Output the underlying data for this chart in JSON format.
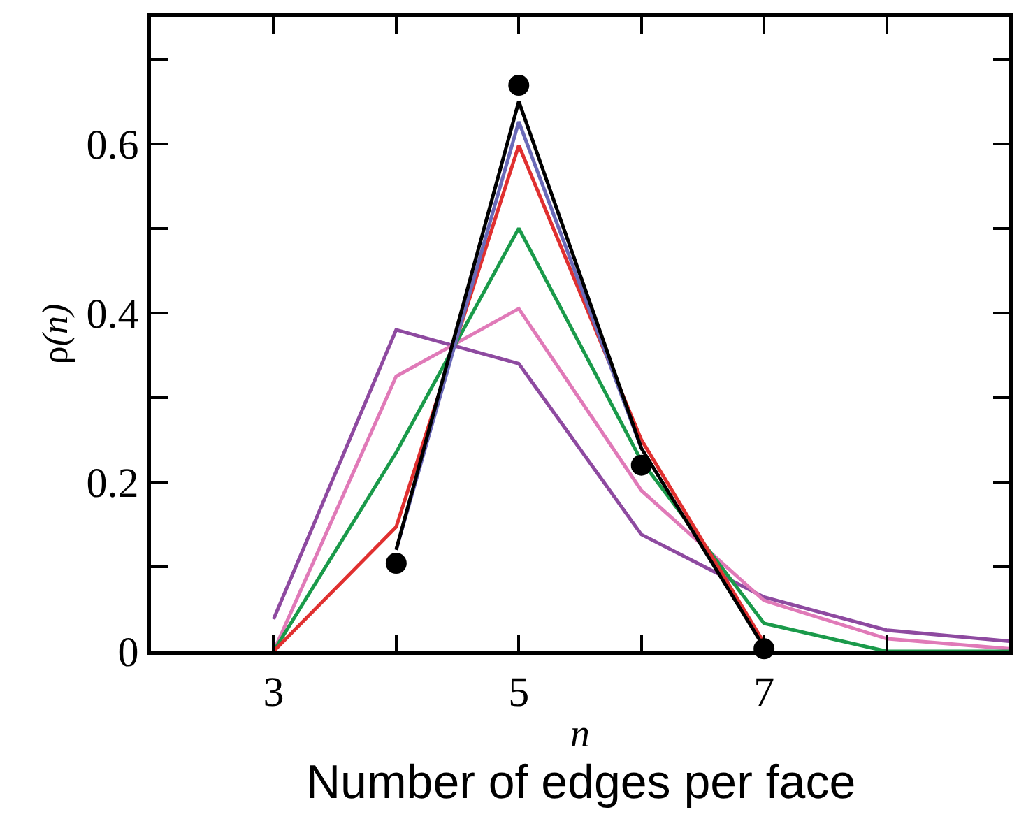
{
  "chart_data": {
    "type": "line",
    "xlabel": "n",
    "ylabel": "ρ(n)",
    "annotations": [
      "Number of edges per face"
    ],
    "xlim": [
      2,
      9
    ],
    "ylim": [
      0,
      0.75
    ],
    "xticks": [
      3,
      {
        "value": 4,
        "label": null
      },
      5,
      {
        "value": 6,
        "label": null
      },
      7,
      {
        "value": 8,
        "label": null
      }
    ],
    "yticks": [
      0,
      {
        "value": 0.1,
        "label": null
      },
      0.2,
      {
        "value": 0.3,
        "label": null
      },
      0.4,
      {
        "value": 0.5,
        "label": null
      },
      0.6,
      {
        "value": 0.7,
        "label": null
      }
    ],
    "legend": false,
    "series": [
      {
        "color": "#8e4aa0",
        "x": [
          3,
          4,
          5,
          6,
          7,
          8,
          9
        ],
        "values": [
          0.038,
          0.38,
          0.34,
          0.138,
          0.064,
          0.025,
          0.012
        ]
      },
      {
        "color": "#e07ab8",
        "x": [
          3,
          4,
          5,
          6,
          7,
          8,
          9
        ],
        "values": [
          0,
          0.325,
          0.405,
          0.19,
          0.06,
          0.015,
          0.003
        ]
      },
      {
        "color": "#1a9a4a",
        "x": [
          3,
          4,
          5,
          6,
          7,
          8,
          9
        ],
        "values": [
          0,
          0.235,
          0.5,
          0.225,
          0.033,
          0,
          0
        ]
      },
      {
        "color": "#e03030",
        "x": [
          3,
          4,
          5,
          6,
          7
        ],
        "values": [
          0,
          0.147,
          0.598,
          0.25,
          0.01
        ]
      },
      {
        "color": "#6a6ab8",
        "x": [
          4,
          5,
          6
        ],
        "values": [
          0.12,
          0.626,
          0.24
        ]
      },
      {
        "color": "#000000",
        "x": [
          4,
          5,
          6,
          7
        ],
        "values": [
          0.12,
          0.65,
          0.24,
          0.005
        ]
      },
      {
        "type": "scatter",
        "marker": "circle",
        "color": "#000000",
        "x": [
          4,
          5,
          6,
          7
        ],
        "values": [
          0.104,
          0.669,
          0.22,
          0.003
        ]
      }
    ]
  }
}
